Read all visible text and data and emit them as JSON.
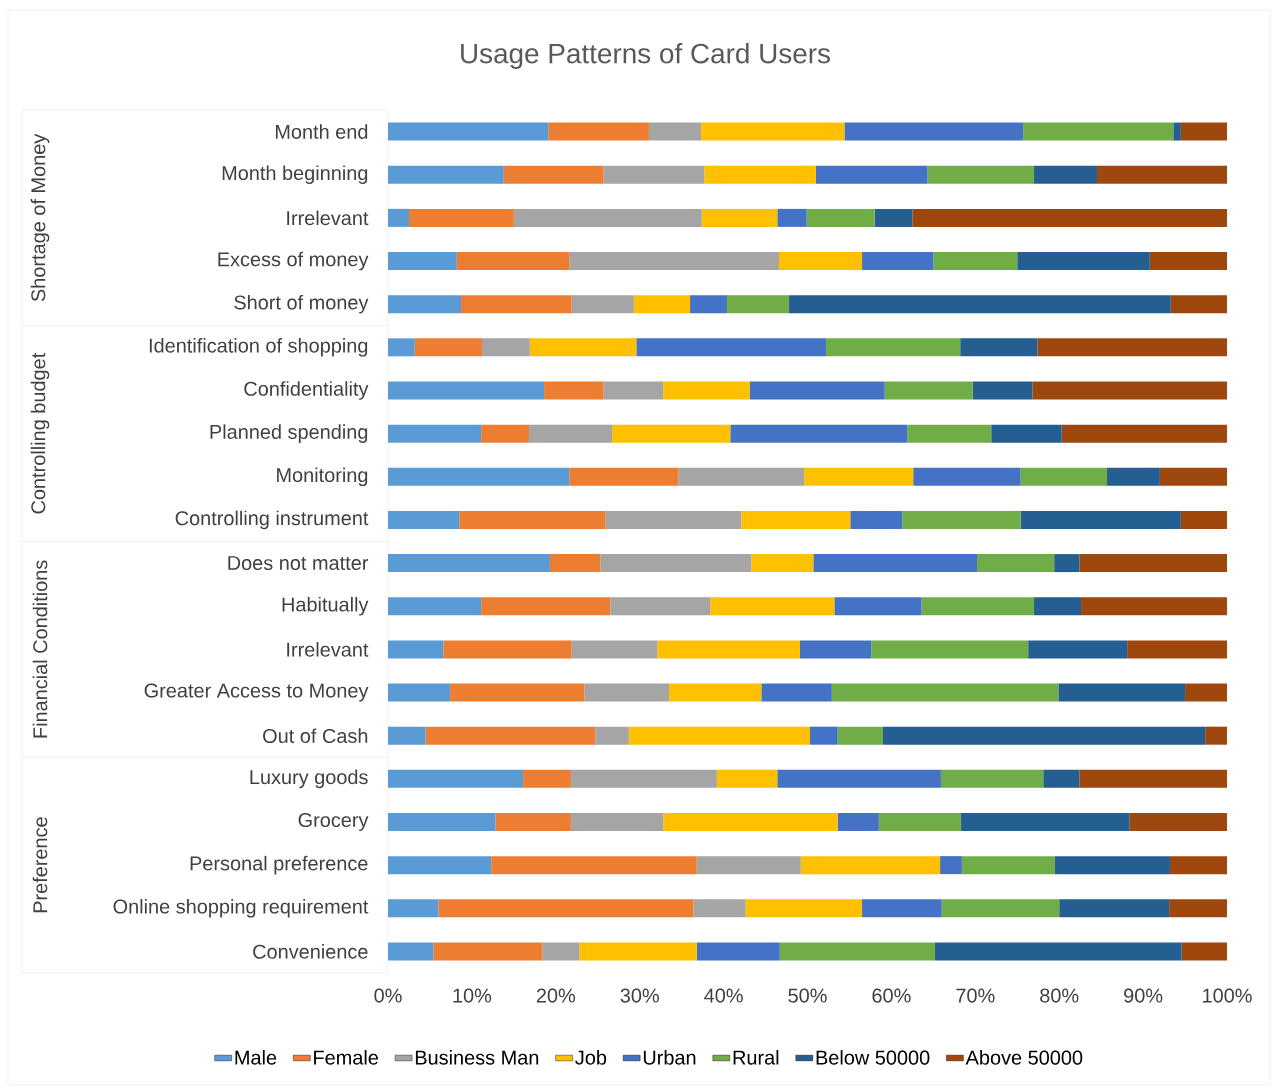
{
  "chart_data": {
    "type": "bar",
    "orientation": "horizontal",
    "stacked": true,
    "title": "Usage Patterns of Card Users",
    "categories": [
      "Month end",
      "Month beginning",
      "Irrelevant",
      "Excess of money",
      "Short of money",
      "Identification of shopping",
      "Confidentiality",
      "Planned spending",
      "Monitoring",
      "Controlling instrument",
      "Does not matter",
      "Habitually",
      "Irrelevant",
      "Greater Access to Money",
      "Out of Cash",
      "Luxury goods",
      "Grocery",
      "Personal preference",
      "Online shopping requirement",
      "Convenience"
    ],
    "series": [
      {
        "name": "Male",
        "color": "#5b9bd5",
        "values": [
          19.1,
          13.8,
          2.5,
          8.2,
          8.7,
          3.2,
          18.6,
          11.1,
          21.6,
          8.5,
          19.3,
          11.1,
          6.6,
          7.4,
          4.5,
          16.1,
          12.8,
          12.3,
          6.0,
          5.4
        ]
      },
      {
        "name": "Female",
        "color": "#ed7d31",
        "values": [
          12.0,
          11.9,
          12.5,
          13.4,
          13.2,
          8.0,
          7.1,
          5.7,
          13.0,
          17.4,
          6.0,
          15.4,
          15.3,
          16.0,
          20.2,
          5.7,
          9.0,
          24.5,
          30.4,
          13.0
        ]
      },
      {
        "name": "Business Man",
        "color": "#a5a5a5",
        "values": [
          6.2,
          12.0,
          22.4,
          25.0,
          7.4,
          5.7,
          7.1,
          9.9,
          15.0,
          16.2,
          18.0,
          11.9,
          10.2,
          10.1,
          4.0,
          17.4,
          11.0,
          12.4,
          6.2,
          4.4
        ]
      },
      {
        "name": "Job",
        "color": "#ffc000",
        "values": [
          17.1,
          13.3,
          9.0,
          9.9,
          6.7,
          12.7,
          10.3,
          14.1,
          13.0,
          13.0,
          7.4,
          14.8,
          17.0,
          11.0,
          21.6,
          7.2,
          20.8,
          16.6,
          13.9,
          14.0
        ]
      },
      {
        "name": "Urban",
        "color": "#4472c4",
        "values": [
          21.3,
          13.3,
          3.5,
          8.5,
          4.4,
          22.6,
          16.1,
          21.1,
          12.8,
          6.2,
          19.5,
          10.4,
          8.5,
          8.4,
          3.3,
          19.5,
          4.9,
          2.6,
          9.5,
          9.9
        ]
      },
      {
        "name": "Rural",
        "color": "#70ad47",
        "values": [
          17.9,
          12.7,
          8.1,
          10.0,
          7.4,
          16.0,
          10.5,
          10.0,
          10.3,
          14.1,
          9.2,
          13.4,
          18.7,
          27.0,
          5.4,
          12.2,
          9.8,
          11.1,
          14.0,
          18.5
        ]
      },
      {
        "name": "Below 50000",
        "color": "#255e91",
        "values": [
          0.9,
          7.5,
          4.5,
          15.8,
          45.5,
          9.2,
          7.1,
          8.4,
          6.3,
          19.1,
          3.0,
          5.6,
          11.8,
          15.1,
          38.4,
          4.3,
          20.1,
          13.7,
          13.1,
          29.4
        ]
      },
      {
        "name": "Above 50000",
        "color": "#9e480e",
        "values": [
          5.5,
          15.5,
          37.5,
          9.2,
          6.7,
          22.6,
          23.2,
          19.7,
          8.0,
          5.5,
          17.6,
          17.4,
          11.9,
          5.0,
          2.6,
          17.6,
          11.6,
          6.8,
          6.9,
          5.4
        ]
      }
    ],
    "xlim": [
      0,
      100
    ],
    "xticks": [
      {
        "value": 0,
        "label": "0%"
      },
      {
        "value": 10,
        "label": "10%"
      },
      {
        "value": 20,
        "label": "20%"
      },
      {
        "value": 30,
        "label": "30%"
      },
      {
        "value": 40,
        "label": "40%"
      },
      {
        "value": 50,
        "label": "50%"
      },
      {
        "value": 60,
        "label": "60%"
      },
      {
        "value": 70,
        "label": "70%"
      },
      {
        "value": 80,
        "label": "80%"
      },
      {
        "value": 90,
        "label": "90%"
      },
      {
        "value": 100,
        "label": "100%"
      }
    ],
    "legend": "bottom",
    "annotations": [
      "Shortage of Money",
      "Controlling budget",
      "Financial Conditions",
      "Preference"
    ]
  }
}
